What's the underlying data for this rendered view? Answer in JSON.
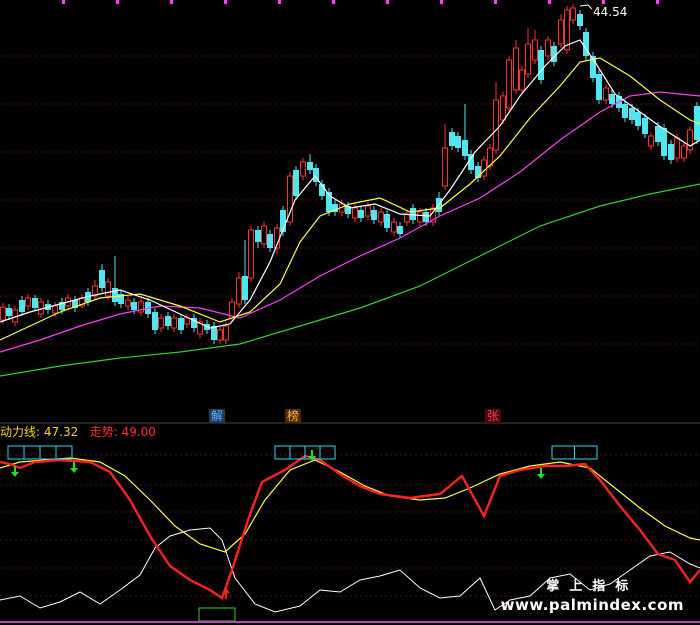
{
  "price_panel": {
    "peak_label": "44.54",
    "markers": [
      {
        "text": "解",
        "color": "#5ab4ff"
      },
      {
        "text": "榜",
        "color": "#ffb347"
      },
      {
        "text": "张",
        "color": "#ff3b3b"
      }
    ]
  },
  "indicator_panel": {
    "legend": [
      {
        "name": "动力线:",
        "value": "47.32",
        "color": "#ffd400"
      },
      {
        "name": "走势:",
        "value": "49.00",
        "color": "#ff2a2a"
      }
    ]
  },
  "watermark": {
    "cn": "掌上指标",
    "url": "www.palmindex.com"
  },
  "colors": {
    "up": "#ff3030",
    "down": "#4fe6f0",
    "ma_white": "#ffffff",
    "ma_yellow": "#ffff30",
    "ma_magenta": "#ff3cff",
    "ma_green": "#30d030",
    "grid": "#5a1010"
  }
}
